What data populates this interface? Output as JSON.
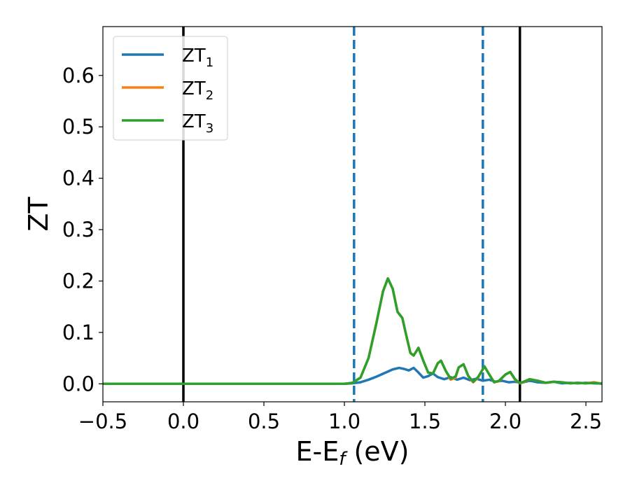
{
  "chart_data": {
    "type": "line",
    "xlabel": {
      "main": "E-E",
      "sub": "f",
      "unit": " (eV)"
    },
    "ylabel": "ZT",
    "xlim": [
      -0.5,
      2.6
    ],
    "ylim": [
      -0.035,
      0.695
    ],
    "xticks": [
      -0.5,
      0.0,
      0.5,
      1.0,
      1.5,
      2.0,
      2.5
    ],
    "yticks": [
      0.0,
      0.1,
      0.2,
      0.3,
      0.4,
      0.5,
      0.6
    ],
    "xtick_labels": [
      "−0.5",
      "0.0",
      "0.5",
      "1.0",
      "1.5",
      "2.0",
      "2.5"
    ],
    "ytick_labels": [
      "0.0",
      "0.1",
      "0.2",
      "0.3",
      "0.4",
      "0.5",
      "0.6"
    ],
    "grid": false,
    "legend_position": "top-left",
    "vlines": [
      {
        "x": 0.0,
        "style": "solid",
        "color": "#000000"
      },
      {
        "x": 2.09,
        "style": "solid",
        "color": "#000000"
      },
      {
        "x": 1.06,
        "style": "dashed",
        "color": "#1f77b4"
      },
      {
        "x": 1.86,
        "style": "dashed",
        "color": "#1f77b4"
      }
    ],
    "series": [
      {
        "name": "ZT",
        "subscript": "1",
        "color": "#1f77b4",
        "points": [
          [
            -0.5,
            0
          ],
          [
            1.0,
            0
          ],
          [
            1.05,
            0.001
          ],
          [
            1.1,
            0.003
          ],
          [
            1.15,
            0.008
          ],
          [
            1.2,
            0.014
          ],
          [
            1.25,
            0.021
          ],
          [
            1.3,
            0.028
          ],
          [
            1.34,
            0.031
          ],
          [
            1.37,
            0.029
          ],
          [
            1.4,
            0.026
          ],
          [
            1.43,
            0.031
          ],
          [
            1.46,
            0.022
          ],
          [
            1.49,
            0.012
          ],
          [
            1.52,
            0.015
          ],
          [
            1.55,
            0.02
          ],
          [
            1.58,
            0.013
          ],
          [
            1.62,
            0.009
          ],
          [
            1.66,
            0.013
          ],
          [
            1.7,
            0.008
          ],
          [
            1.74,
            0.012
          ],
          [
            1.78,
            0.007
          ],
          [
            1.82,
            0.01
          ],
          [
            1.86,
            0.006
          ],
          [
            1.9,
            0.008
          ],
          [
            1.94,
            0.004
          ],
          [
            1.98,
            0.006
          ],
          [
            2.02,
            0.003
          ],
          [
            2.06,
            0.004
          ],
          [
            2.1,
            0.002
          ],
          [
            2.15,
            0.006
          ],
          [
            2.2,
            0.003
          ],
          [
            2.25,
            0.002
          ],
          [
            2.3,
            0.004
          ],
          [
            2.35,
            0.001
          ],
          [
            2.4,
            0.002
          ],
          [
            2.45,
            0.001
          ],
          [
            2.5,
            0.002
          ],
          [
            2.55,
            0.001
          ],
          [
            2.6,
            0.001
          ]
        ]
      },
      {
        "name": "ZT",
        "subscript": "2",
        "color": "#ff7f0e",
        "points": [
          [
            -0.5,
            0
          ],
          [
            1.0,
            0
          ],
          [
            1.05,
            0.002
          ],
          [
            1.1,
            0.012
          ],
          [
            1.15,
            0.05
          ],
          [
            1.2,
            0.12
          ],
          [
            1.24,
            0.18
          ],
          [
            1.27,
            0.205
          ],
          [
            1.3,
            0.185
          ],
          [
            1.33,
            0.14
          ],
          [
            1.36,
            0.128
          ],
          [
            1.38,
            0.1
          ],
          [
            1.41,
            0.06
          ],
          [
            1.43,
            0.055
          ],
          [
            1.46,
            0.07
          ],
          [
            1.49,
            0.045
          ],
          [
            1.52,
            0.022
          ],
          [
            1.55,
            0.02
          ],
          [
            1.58,
            0.04
          ],
          [
            1.6,
            0.045
          ],
          [
            1.63,
            0.025
          ],
          [
            1.66,
            0.008
          ],
          [
            1.69,
            0.012
          ],
          [
            1.71,
            0.032
          ],
          [
            1.74,
            0.038
          ],
          [
            1.77,
            0.015
          ],
          [
            1.8,
            0.003
          ],
          [
            1.83,
            0.012
          ],
          [
            1.87,
            0.034
          ],
          [
            1.9,
            0.018
          ],
          [
            1.93,
            0.003
          ],
          [
            1.96,
            0.005
          ],
          [
            2.0,
            0.018
          ],
          [
            2.03,
            0.023
          ],
          [
            2.06,
            0.008
          ],
          [
            2.09,
            0.001
          ],
          [
            2.12,
            0.004
          ],
          [
            2.15,
            0.009
          ],
          [
            2.2,
            0.006
          ],
          [
            2.25,
            0.002
          ],
          [
            2.3,
            0.004
          ],
          [
            2.35,
            0.003
          ],
          [
            2.4,
            0.001
          ],
          [
            2.45,
            0.002
          ],
          [
            2.5,
            0.001
          ],
          [
            2.55,
            0.003
          ],
          [
            2.6,
            0.0
          ]
        ]
      },
      {
        "name": "ZT",
        "subscript": "3",
        "color": "#2ca02c",
        "points": [
          [
            -0.5,
            0
          ],
          [
            1.0,
            0
          ],
          [
            1.05,
            0.002
          ],
          [
            1.1,
            0.012
          ],
          [
            1.15,
            0.05
          ],
          [
            1.2,
            0.12
          ],
          [
            1.24,
            0.18
          ],
          [
            1.27,
            0.205
          ],
          [
            1.3,
            0.185
          ],
          [
            1.33,
            0.14
          ],
          [
            1.36,
            0.128
          ],
          [
            1.38,
            0.1
          ],
          [
            1.41,
            0.06
          ],
          [
            1.43,
            0.055
          ],
          [
            1.46,
            0.07
          ],
          [
            1.49,
            0.045
          ],
          [
            1.52,
            0.022
          ],
          [
            1.55,
            0.02
          ],
          [
            1.58,
            0.04
          ],
          [
            1.6,
            0.045
          ],
          [
            1.63,
            0.025
          ],
          [
            1.66,
            0.01
          ],
          [
            1.69,
            0.014
          ],
          [
            1.71,
            0.032
          ],
          [
            1.74,
            0.038
          ],
          [
            1.77,
            0.015
          ],
          [
            1.8,
            0.004
          ],
          [
            1.83,
            0.013
          ],
          [
            1.87,
            0.034
          ],
          [
            1.9,
            0.018
          ],
          [
            1.93,
            0.003
          ],
          [
            1.96,
            0.006
          ],
          [
            2.0,
            0.018
          ],
          [
            2.03,
            0.023
          ],
          [
            2.06,
            0.009
          ],
          [
            2.09,
            0.001
          ],
          [
            2.12,
            0.005
          ],
          [
            2.15,
            0.009
          ],
          [
            2.2,
            0.006
          ],
          [
            2.25,
            0.002
          ],
          [
            2.3,
            0.004
          ],
          [
            2.35,
            0.003
          ],
          [
            2.4,
            0.001
          ],
          [
            2.45,
            0.002
          ],
          [
            2.5,
            0.001
          ],
          [
            2.55,
            0.002
          ],
          [
            2.6,
            0.0
          ]
        ]
      }
    ]
  }
}
